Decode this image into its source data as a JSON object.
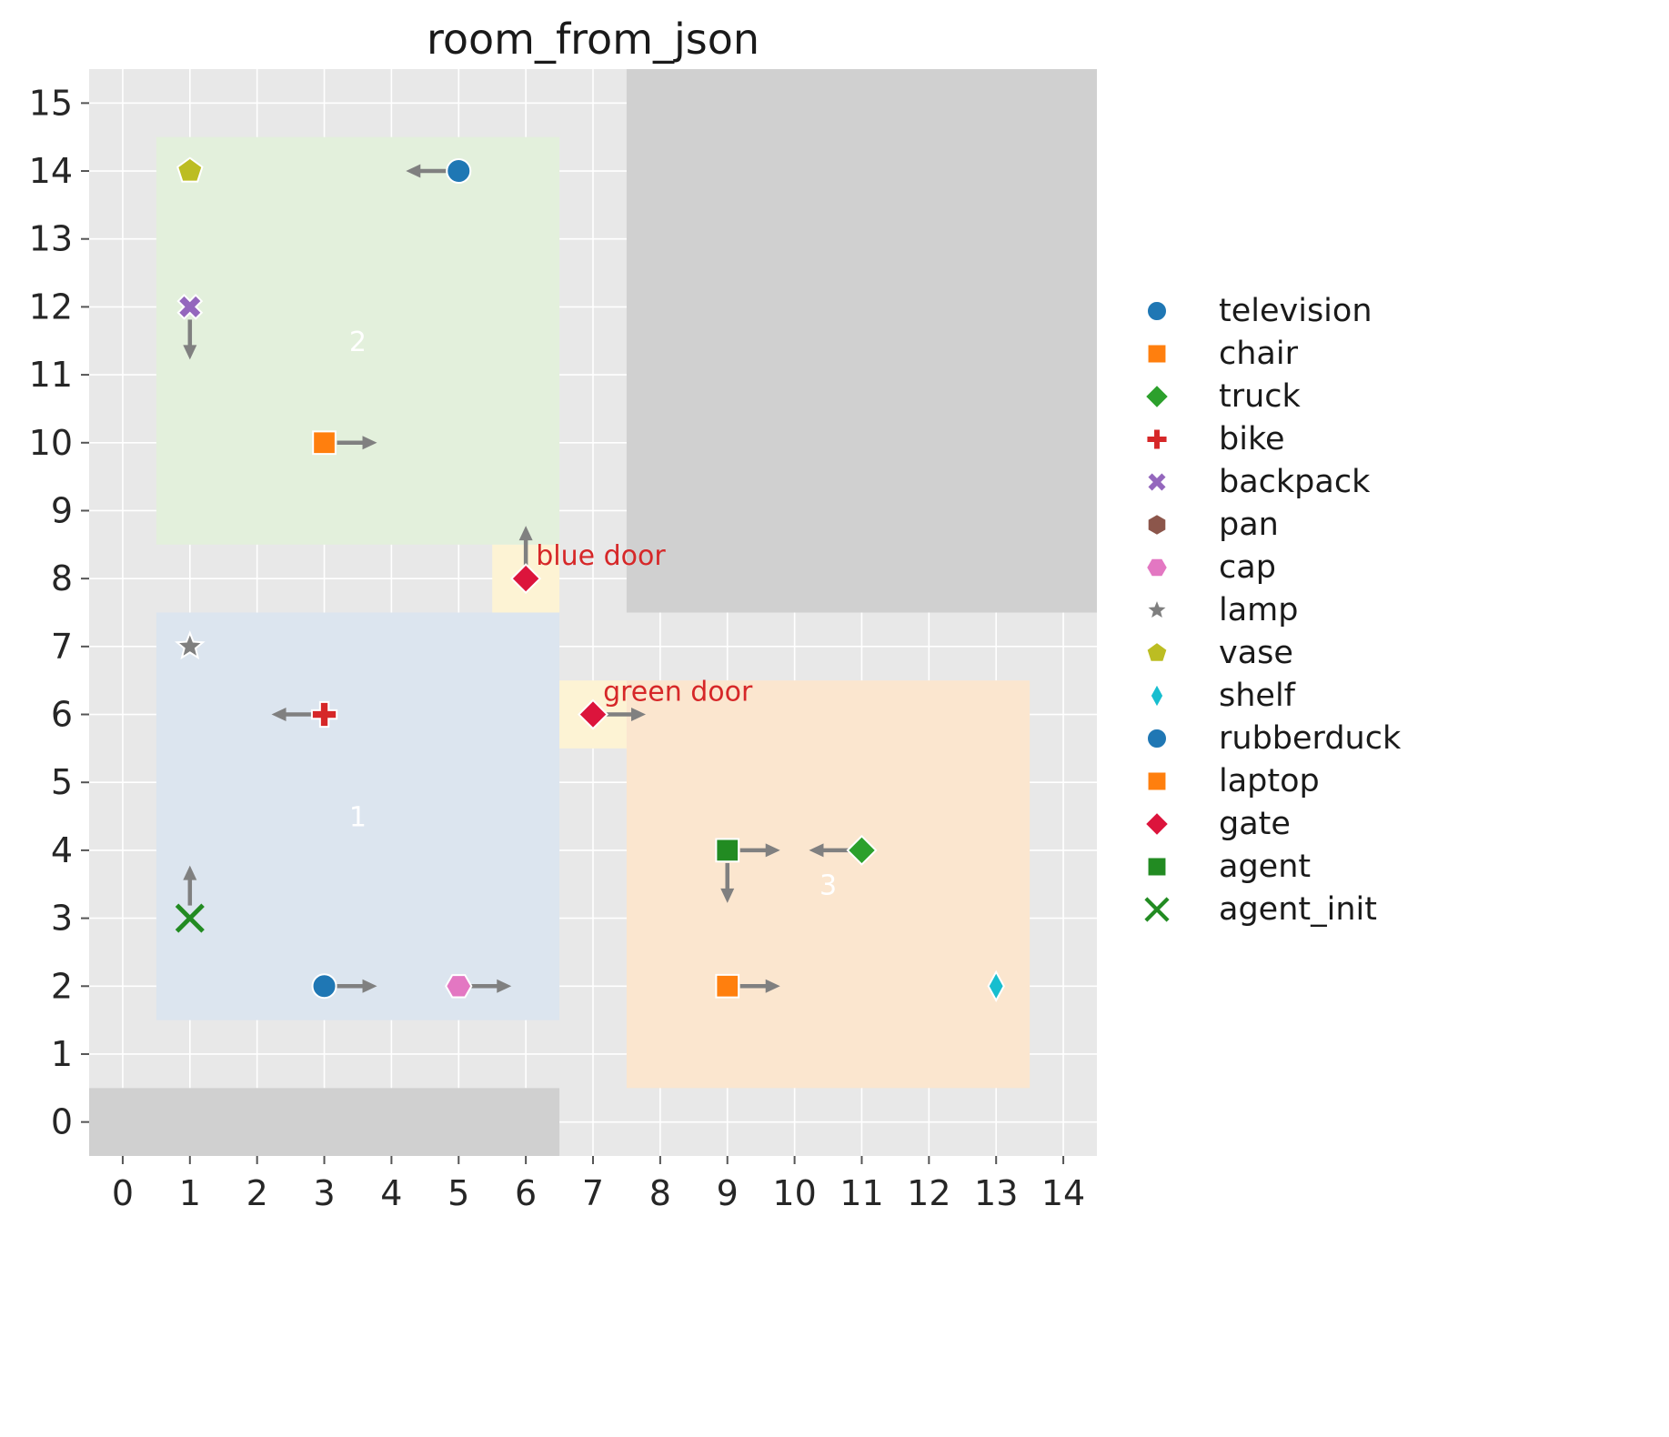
{
  "chart_data": {
    "type": "scatter",
    "title": "room_from_json",
    "xlim": [
      -0.5,
      14.5
    ],
    "ylim": [
      -0.5,
      15.5
    ],
    "grid": true,
    "legend_position": "right",
    "xticks": [
      "0",
      "1",
      "2",
      "3",
      "4",
      "5",
      "6",
      "7",
      "8",
      "9",
      "10",
      "11",
      "12",
      "13",
      "14"
    ],
    "yticks": [
      "0",
      "1",
      "2",
      "3",
      "4",
      "5",
      "6",
      "7",
      "8",
      "9",
      "10",
      "11",
      "12",
      "13",
      "14",
      "15"
    ],
    "colors": {
      "plot_bg": "#e8e8e8",
      "wall": "#d0d0d0",
      "grid": "#ffffff",
      "tick": "#555555",
      "tick_label": "#262626",
      "arrow": "#808080",
      "door_fill": "#fdf3d4",
      "annotation": "#d62728",
      "region_label": "#ffffff",
      "marker_edge": "#ffffff"
    },
    "regions": [
      {
        "name": "wall-bottom-left",
        "x0": -0.5,
        "y0": -0.5,
        "x1": 6.5,
        "y1": 0.5,
        "fill": "wall"
      },
      {
        "name": "wall-top-right",
        "x0": 7.5,
        "y0": 7.5,
        "x1": 14.5,
        "y1": 15.5,
        "fill": "wall"
      },
      {
        "name": "room-2",
        "x0": 0.5,
        "y0": 8.5,
        "x1": 6.5,
        "y1": 14.5,
        "fill": "#e3f0dc",
        "label": "2",
        "lx": 3.5,
        "ly": 11.5
      },
      {
        "name": "room-1",
        "x0": 0.5,
        "y0": 1.5,
        "x1": 6.5,
        "y1": 7.5,
        "fill": "#dce5ef",
        "label": "1",
        "lx": 3.5,
        "ly": 4.5
      },
      {
        "name": "room-3",
        "x0": 7.5,
        "y0": 0.5,
        "x1": 13.5,
        "y1": 6.5,
        "fill": "#fbe6cf",
        "label": "3",
        "lx": 10.5,
        "ly": 3.5
      },
      {
        "name": "door-blue",
        "x0": 5.5,
        "y0": 7.5,
        "x1": 6.5,
        "y1": 8.5,
        "fill": "door"
      },
      {
        "name": "door-green",
        "x0": 6.5,
        "y0": 5.5,
        "x1": 7.5,
        "y1": 6.5,
        "fill": "door"
      }
    ],
    "points": [
      {
        "name": "vase",
        "x": 1,
        "y": 14,
        "marker": "pentagon",
        "color": "#bcbd22",
        "arrows": []
      },
      {
        "name": "television",
        "x": 5,
        "y": 14,
        "marker": "circle",
        "color": "#1f77b4",
        "arrows": [
          "left"
        ]
      },
      {
        "name": "backpack",
        "x": 1,
        "y": 12,
        "marker": "x-thick",
        "color": "#9467bd",
        "arrows": [
          "down"
        ]
      },
      {
        "name": "chair",
        "x": 3,
        "y": 10,
        "marker": "square",
        "color": "#ff7f0e",
        "arrows": [
          "right"
        ]
      },
      {
        "name": "gate-blue-door",
        "x": 6,
        "y": 8,
        "marker": "diamond",
        "color": "#dc143c",
        "arrows": [
          "up"
        ]
      },
      {
        "name": "lamp",
        "x": 1,
        "y": 7,
        "marker": "star",
        "color": "#7f7f7f",
        "arrows": []
      },
      {
        "name": "bike",
        "x": 3,
        "y": 6,
        "marker": "plus",
        "color": "#d62728",
        "arrows": [
          "left"
        ]
      },
      {
        "name": "gate-green-door",
        "x": 7,
        "y": 6,
        "marker": "diamond",
        "color": "#dc143c",
        "arrows": [
          "right"
        ]
      },
      {
        "name": "agent",
        "x": 9,
        "y": 4,
        "marker": "square",
        "color": "#228b22",
        "arrows": [
          "right",
          "down"
        ]
      },
      {
        "name": "truck",
        "x": 11,
        "y": 4,
        "marker": "diamond",
        "color": "#2ca02c",
        "arrows": [
          "left"
        ]
      },
      {
        "name": "agent_init",
        "x": 1,
        "y": 3,
        "marker": "x-thin",
        "color": "#228b22",
        "arrows": [
          "up"
        ]
      },
      {
        "name": "rubberduck",
        "x": 3,
        "y": 2,
        "marker": "circle",
        "color": "#1f77b4",
        "arrows": [
          "right"
        ]
      },
      {
        "name": "cap",
        "x": 5,
        "y": 2,
        "marker": "hexagon-flat",
        "color": "#e377c2",
        "arrows": [
          "right"
        ]
      },
      {
        "name": "laptop",
        "x": 9,
        "y": 2,
        "marker": "square",
        "color": "#ff7f0e",
        "arrows": [
          "right"
        ]
      },
      {
        "name": "shelf",
        "x": 13,
        "y": 2,
        "marker": "thin-diamond",
        "color": "#17becf",
        "arrows": []
      }
    ],
    "annotations": [
      {
        "text": "blue door",
        "x": 6.15,
        "y": 8.2
      },
      {
        "text": "green door",
        "x": 7.15,
        "y": 6.2
      }
    ],
    "legend": [
      {
        "label": "television",
        "marker": "circle",
        "color": "#1f77b4"
      },
      {
        "label": "chair",
        "marker": "square",
        "color": "#ff7f0e"
      },
      {
        "label": "truck",
        "marker": "diamond",
        "color": "#2ca02c"
      },
      {
        "label": "bike",
        "marker": "plus",
        "color": "#d62728"
      },
      {
        "label": "backpack",
        "marker": "x-thick",
        "color": "#9467bd"
      },
      {
        "label": "pan",
        "marker": "hexagon",
        "color": "#8c564b"
      },
      {
        "label": "cap",
        "marker": "hexagon-flat",
        "color": "#e377c2"
      },
      {
        "label": "lamp",
        "marker": "star",
        "color": "#7f7f7f"
      },
      {
        "label": "vase",
        "marker": "pentagon",
        "color": "#bcbd22"
      },
      {
        "label": "shelf",
        "marker": "thin-diamond",
        "color": "#17becf"
      },
      {
        "label": "rubberduck",
        "marker": "circle",
        "color": "#1f77b4"
      },
      {
        "label": "laptop",
        "marker": "square",
        "color": "#ff7f0e"
      },
      {
        "label": "gate",
        "marker": "diamond",
        "color": "#dc143c"
      },
      {
        "label": "agent",
        "marker": "square",
        "color": "#228b22"
      },
      {
        "label": "agent_init",
        "marker": "x-thin",
        "color": "#228b22"
      }
    ]
  }
}
